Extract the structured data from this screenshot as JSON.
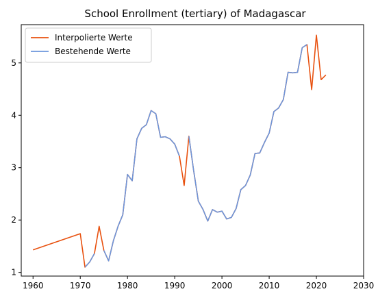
{
  "chart_data": {
    "type": "line",
    "title": "School Enrollment (tertiary) of Madagascar",
    "xlabel": "",
    "ylabel": "",
    "xlim": [
      1957.5,
      2030
    ],
    "ylim": [
      0.93,
      5.73
    ],
    "xticks": [
      1960,
      1970,
      1980,
      1990,
      2000,
      2010,
      2020,
      2030
    ],
    "yticks": [
      1,
      2,
      3,
      4,
      5
    ],
    "grid": false,
    "legend_position": "top-left",
    "series": [
      {
        "name": "Interpolierte Werte",
        "color": "#e8500e",
        "x": [
          1960,
          1970,
          1971,
          1972,
          1973,
          1974,
          1975,
          1976,
          1977,
          1978,
          1979,
          1980,
          1981,
          1982,
          1983,
          1984,
          1985,
          1986,
          1987,
          1988,
          1989,
          1990,
          1991,
          1992,
          1993,
          1994,
          1995,
          1996,
          1997,
          1998,
          1999,
          2000,
          2001,
          2002,
          2003,
          2004,
          2005,
          2006,
          2007,
          2008,
          2009,
          2010,
          2011,
          2012,
          2013,
          2014,
          2015,
          2016,
          2017,
          2018,
          2019,
          2020,
          2021,
          2022
        ],
        "y": [
          1.43,
          1.74,
          1.1,
          1.2,
          1.36,
          1.88,
          1.42,
          1.22,
          1.6,
          1.88,
          2.1,
          2.87,
          2.75,
          3.55,
          3.75,
          3.82,
          4.09,
          4.03,
          3.58,
          3.59,
          3.55,
          3.45,
          3.22,
          2.66,
          3.6,
          2.95,
          2.36,
          2.2,
          1.98,
          2.2,
          2.15,
          2.17,
          2.02,
          2.05,
          2.22,
          2.58,
          2.66,
          2.86,
          3.27,
          3.28,
          3.48,
          3.66,
          4.07,
          4.14,
          4.3,
          4.82,
          4.81,
          4.82,
          5.29,
          5.35,
          4.49,
          5.53,
          4.68,
          4.77
        ]
      },
      {
        "name": "Bestehende Werte",
        "color": "#6c96dc",
        "x": [
          1971,
          1972,
          1973,
          null,
          1975,
          1976,
          1977,
          1978,
          1979,
          1980,
          1981,
          1982,
          1983,
          1984,
          1985,
          1986,
          1987,
          1988,
          1989,
          1990,
          1991,
          null,
          1993,
          1994,
          1995,
          1996,
          1997,
          1998,
          1999,
          2000,
          2001,
          2002,
          2003,
          2004,
          2005,
          2006,
          2007,
          2008,
          2009,
          2010,
          2011,
          2012,
          2013,
          2014,
          2015,
          2016,
          2017,
          2018
        ],
        "y": [
          1.1,
          1.2,
          1.36,
          null,
          1.42,
          1.22,
          1.6,
          1.88,
          2.1,
          2.87,
          2.75,
          3.55,
          3.75,
          3.82,
          4.09,
          4.03,
          3.58,
          3.59,
          3.55,
          3.45,
          3.22,
          null,
          3.6,
          2.95,
          2.36,
          2.2,
          1.98,
          2.2,
          2.15,
          2.17,
          2.02,
          2.05,
          2.22,
          2.58,
          2.66,
          2.86,
          3.27,
          3.28,
          3.48,
          3.66,
          4.07,
          4.14,
          4.3,
          4.82,
          4.81,
          4.82,
          5.29,
          5.35
        ]
      }
    ]
  }
}
